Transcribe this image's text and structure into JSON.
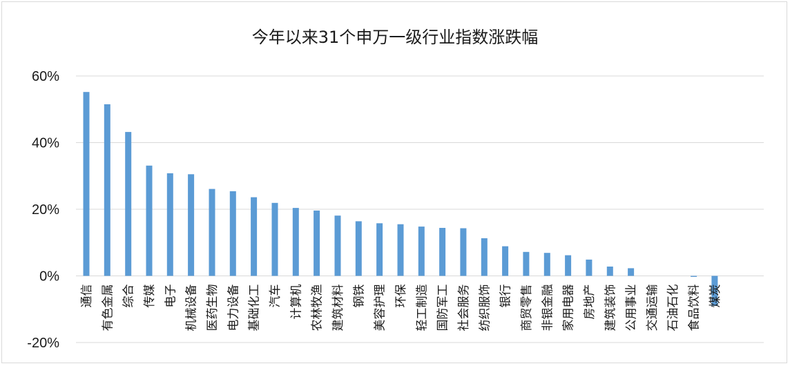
{
  "chart_data": {
    "type": "bar",
    "title": "今年以来31个申万一级行业指数涨跌幅",
    "xlabel": "",
    "ylabel": "",
    "ylim": [
      -20,
      60
    ],
    "yticks": [
      -20,
      0,
      20,
      40,
      60
    ],
    "ytick_labels": [
      "-20%",
      "0%",
      "20%",
      "40%",
      "60%"
    ],
    "grid": true,
    "legend": "none",
    "color": "#5b9bd5",
    "categories": [
      "通信",
      "有色金属",
      "综合",
      "传媒",
      "电子",
      "机械设备",
      "医药生物",
      "电力设备",
      "基础化工",
      "汽车",
      "计算机",
      "农林牧渔",
      "建筑材料",
      "钢铁",
      "美容护理",
      "环保",
      "轻工制造",
      "国防军工",
      "社会服务",
      "纺织服饰",
      "银行",
      "商贸零售",
      "非银金融",
      "家用电器",
      "房地产",
      "建筑装饰",
      "公用事业",
      "交通运输",
      "石油石化",
      "食品饮料",
      "煤炭"
    ],
    "values": [
      55.2,
      51.5,
      43.2,
      33.1,
      30.8,
      30.5,
      26.1,
      25.4,
      23.6,
      21.9,
      20.4,
      19.6,
      18.1,
      16.4,
      15.8,
      15.5,
      14.8,
      14.4,
      14.3,
      11.3,
      8.9,
      7.2,
      6.9,
      6.2,
      4.9,
      2.8,
      2.3,
      0.0,
      0.0,
      -0.3,
      -9.0
    ]
  }
}
